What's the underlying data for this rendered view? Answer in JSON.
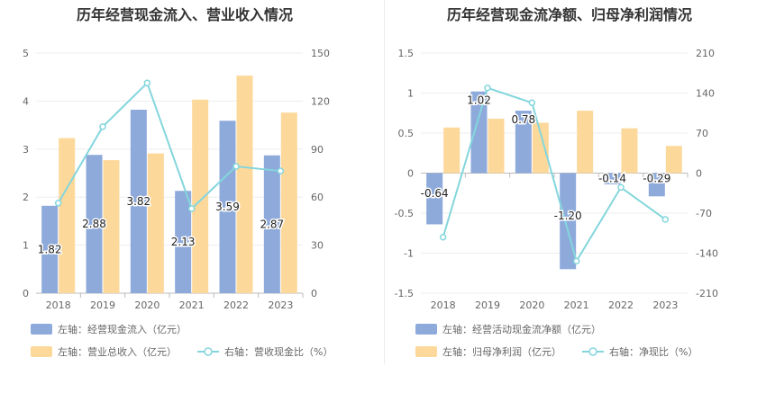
{
  "colors": {
    "bar_blue": "#8eaadb",
    "bar_yellow": "#fdd89b",
    "line_cyan": "#84d6dc",
    "axis_text": "#666666",
    "title_text": "#333333",
    "grid": "#eeeeee",
    "baseline": "#bbbbbb"
  },
  "chart_data": [
    {
      "type": "bar",
      "title": "历年经营现金流入、营业收入情况",
      "categories": [
        "2018",
        "2019",
        "2020",
        "2021",
        "2022",
        "2023"
      ],
      "y_left": {
        "min": 0,
        "max": 5,
        "ticks": [
          0,
          1,
          2,
          3,
          4,
          5
        ]
      },
      "y_right": {
        "min": 0,
        "max": 150,
        "ticks": [
          0,
          30,
          60,
          90,
          120,
          150
        ]
      },
      "series": [
        {
          "name": "左轴：经营现金流入（亿元）",
          "kind": "bar",
          "axis": "left",
          "color": "#8eaadb",
          "values": [
            1.82,
            2.88,
            3.82,
            2.13,
            3.59,
            2.87
          ],
          "labels": [
            "1.82",
            "2.88",
            "3.82",
            "2.13",
            "3.59",
            "2.87"
          ]
        },
        {
          "name": "左轴：营业总收入（亿元）",
          "kind": "bar",
          "axis": "left",
          "color": "#fdd89b",
          "values": [
            3.23,
            2.77,
            2.91,
            4.03,
            4.53,
            3.76
          ]
        },
        {
          "name": "右轴：营收现金比（%）",
          "kind": "line",
          "axis": "right",
          "color": "#84d6dc",
          "values": [
            56.3,
            104.0,
            131.3,
            52.8,
            79.2,
            76.3
          ]
        }
      ],
      "grid": true,
      "legend_placement": "bottom"
    },
    {
      "type": "bar",
      "title": "历年经营现金流净额、归母净利润情况",
      "categories": [
        "2018",
        "2019",
        "2020",
        "2021",
        "2022",
        "2023"
      ],
      "y_left": {
        "min": -1.5,
        "max": 1.5,
        "ticks": [
          -1.5,
          -1,
          -0.5,
          0,
          0.5,
          1,
          1.5
        ],
        "tick_labels": [
          "-1.5",
          "-1",
          "-0.5",
          "0",
          "0.5",
          "1",
          "1.5"
        ]
      },
      "y_right": {
        "min": -210,
        "max": 210,
        "ticks": [
          -210,
          -140,
          -70,
          0,
          70,
          140,
          210
        ]
      },
      "series": [
        {
          "name": "左轴：经营活动现金流净额（亿元）",
          "kind": "bar",
          "axis": "left",
          "color": "#8eaadb",
          "values": [
            -0.64,
            1.02,
            0.78,
            -1.2,
            -0.14,
            -0.29
          ],
          "labels": [
            "-0.64",
            "1.02",
            "0.78",
            "-1.20",
            "-0.14",
            "-0.29"
          ]
        },
        {
          "name": "左轴：归母净利润（亿元）",
          "kind": "bar",
          "axis": "left",
          "color": "#fdd89b",
          "values": [
            0.57,
            0.68,
            0.63,
            0.78,
            0.56,
            0.34
          ]
        },
        {
          "name": "右轴：净现比（%）",
          "kind": "line",
          "axis": "right",
          "color": "#84d6dc",
          "values": [
            -112,
            149,
            123,
            -154,
            -25,
            -81
          ]
        }
      ],
      "grid": true,
      "legend_placement": "bottom"
    }
  ]
}
